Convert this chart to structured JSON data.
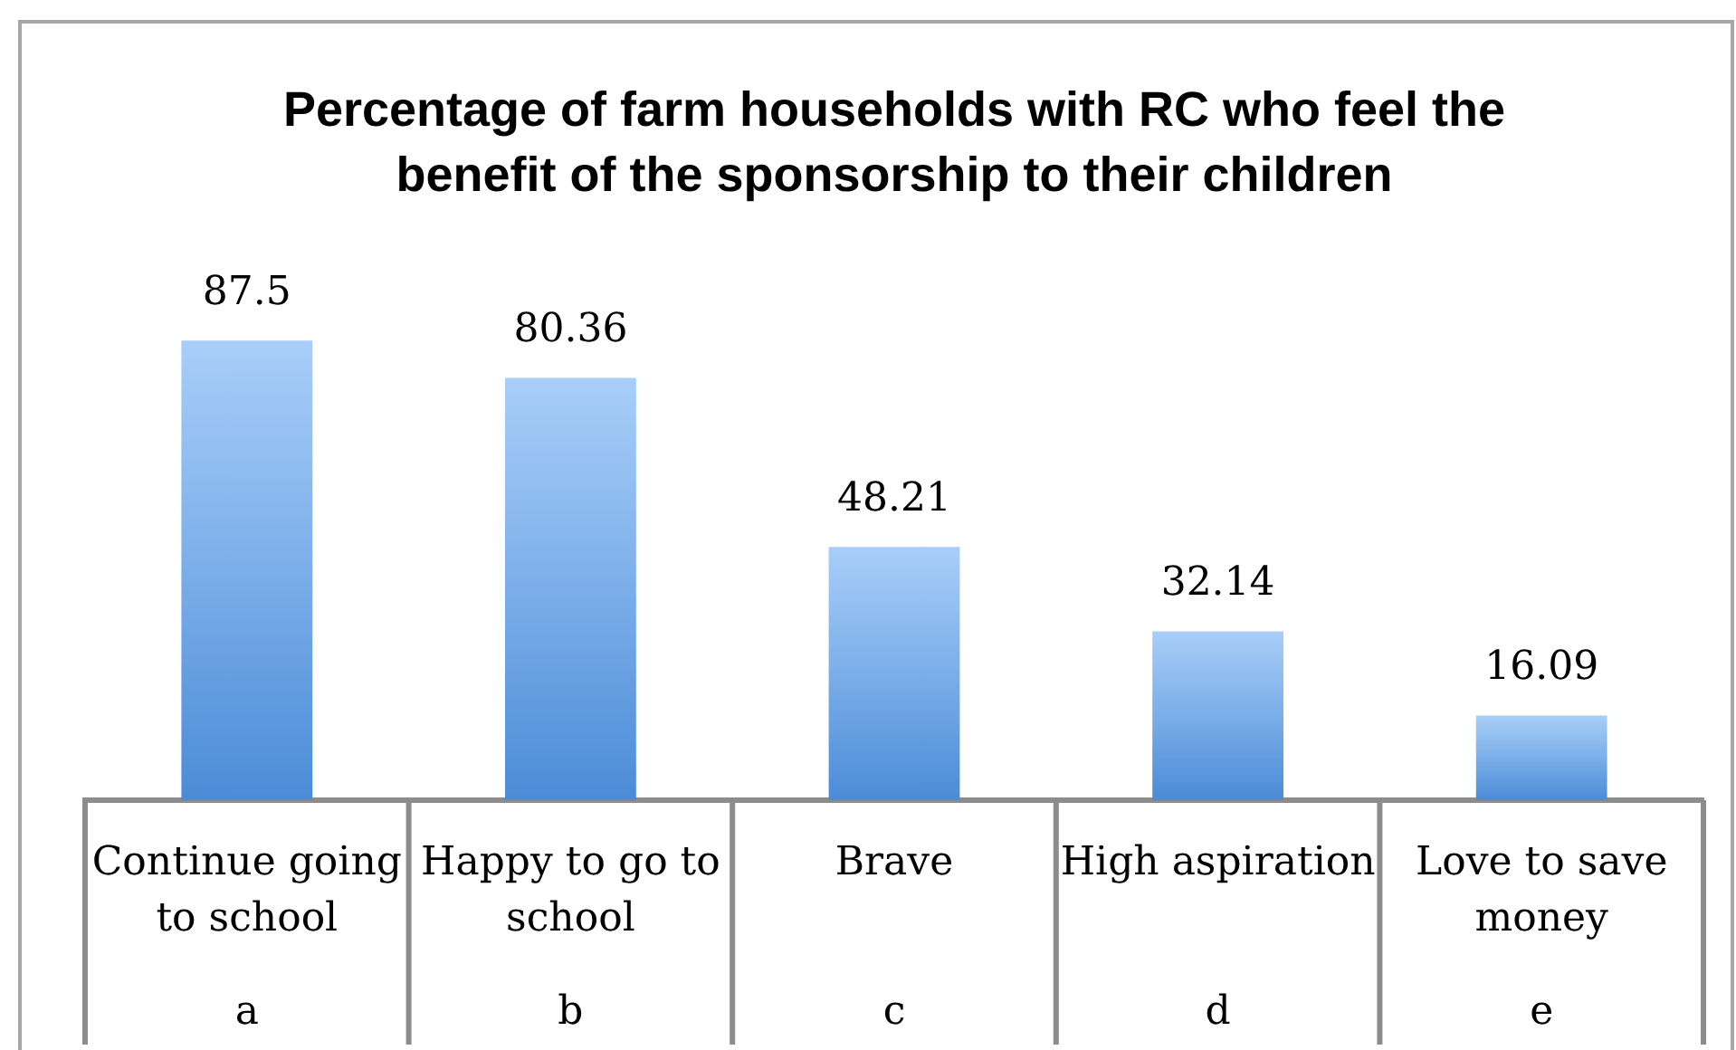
{
  "chart_data": {
    "type": "bar",
    "title": "Percentage of farm households with RC who feel the benefit of the sponsorship to their children",
    "categories": [
      "Continue going to school",
      "Happy to go to school",
      "Brave",
      "High aspiration",
      "Love to save money"
    ],
    "values": [
      87.5,
      80.36,
      48.21,
      32.14,
      16.09
    ],
    "color": "#7baee9",
    "data_labels": true,
    "annotations": [
      "a",
      "b",
      "c",
      "d",
      "e"
    ]
  }
}
